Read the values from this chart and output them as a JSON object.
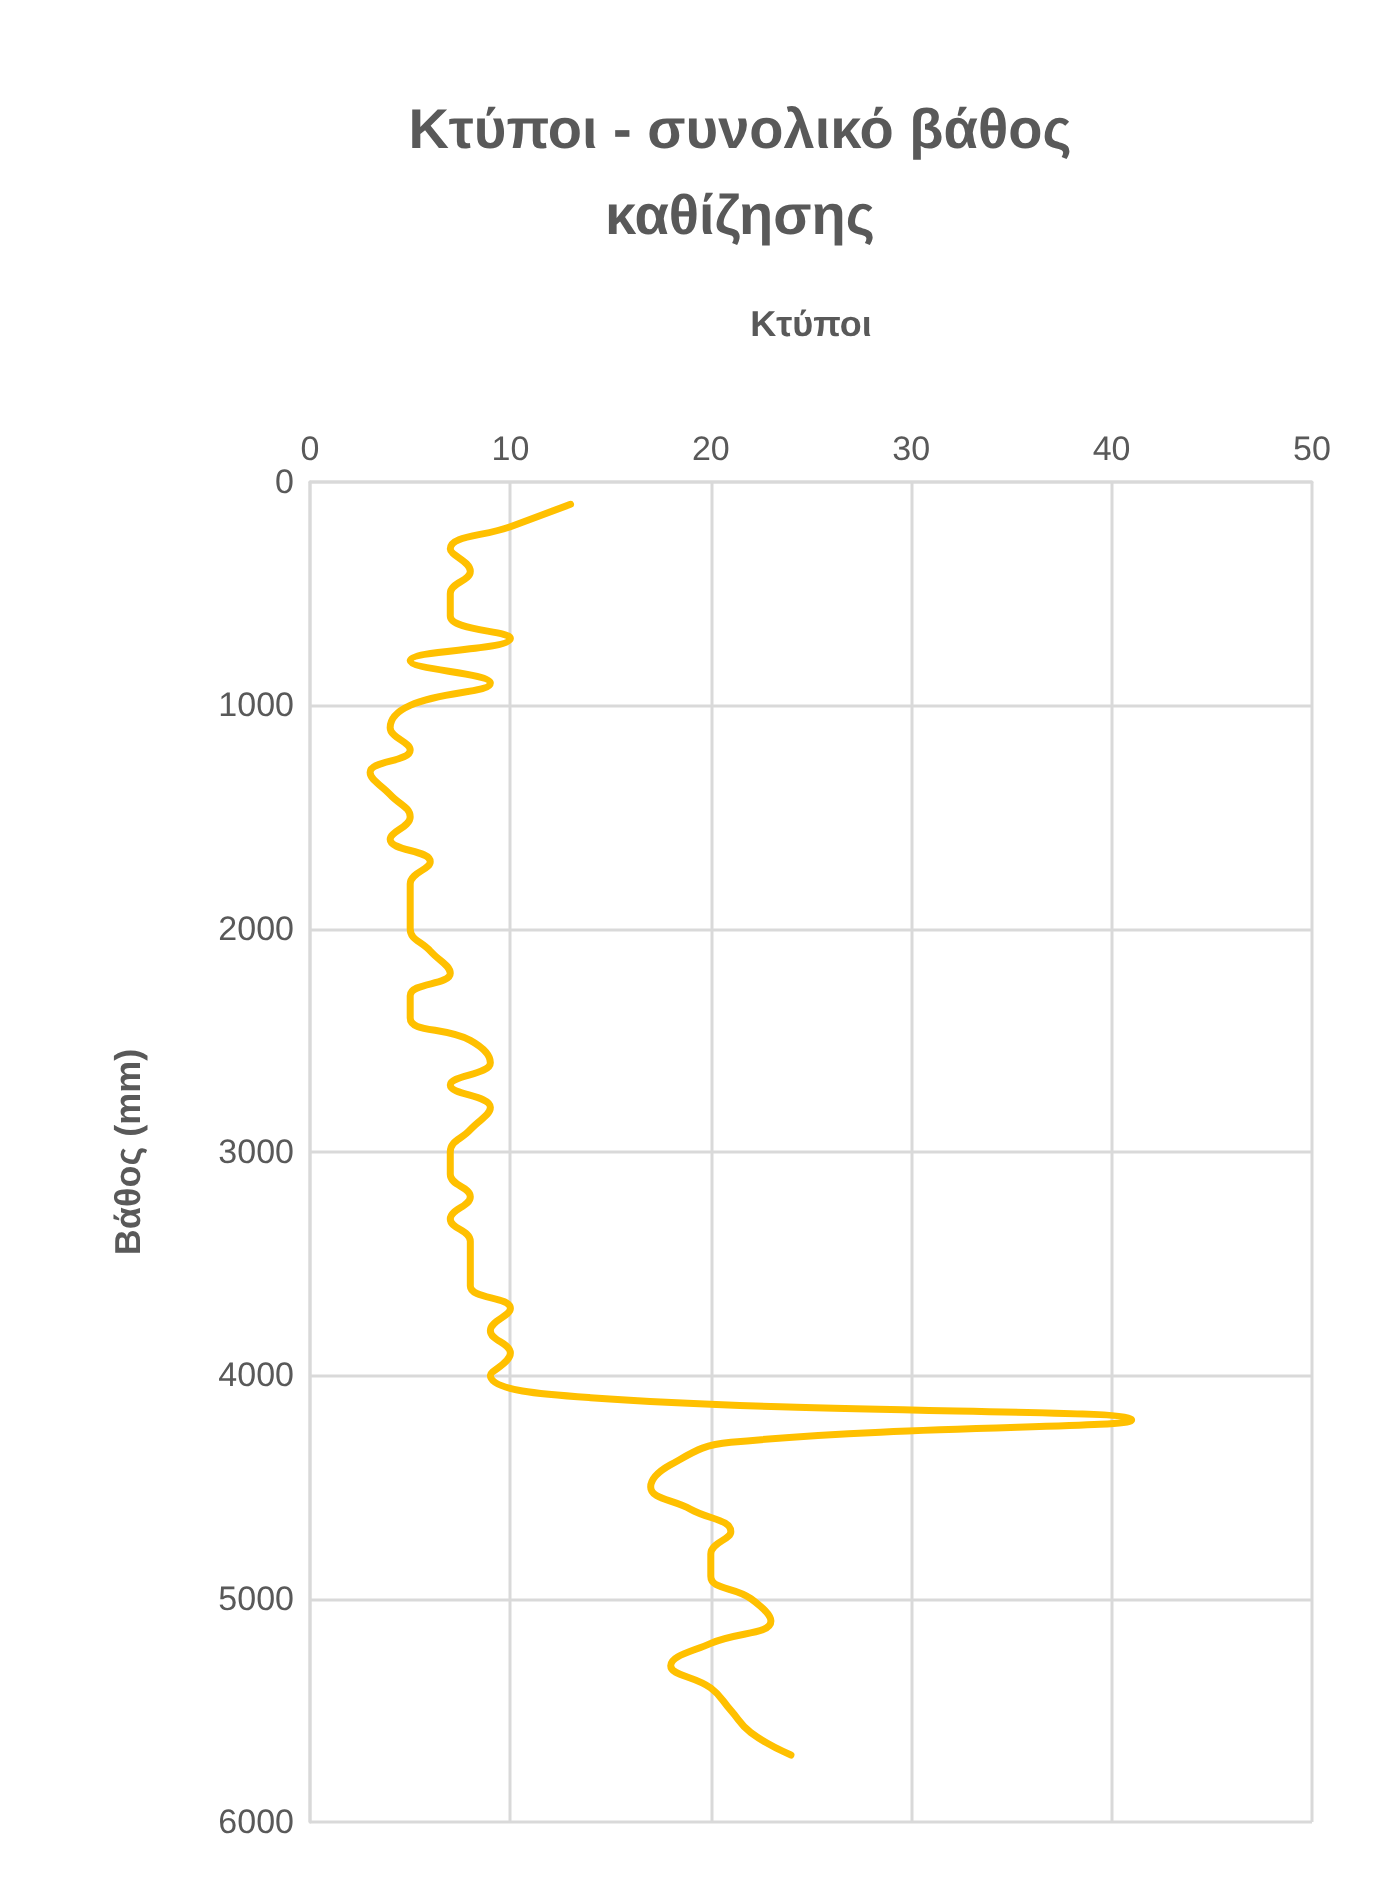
{
  "chart_data": {
    "type": "line",
    "title": "Κτύποι - συνολικό βάθος καθίζησης",
    "xlabel": "Κτύποι",
    "ylabel": "Βάθος (mm)",
    "xlim": [
      0,
      50
    ],
    "xticks": [
      0,
      10,
      20,
      30,
      40,
      50
    ],
    "ylim": [
      6000,
      0
    ],
    "yticks": [
      0,
      1000,
      2000,
      3000,
      4000,
      5000,
      6000
    ],
    "grid": true,
    "series": [
      {
        "color": "#ffc000",
        "x": [
          13,
          10,
          7,
          8,
          7,
          7,
          10,
          5,
          9,
          5,
          4,
          5,
          3,
          4,
          5,
          4,
          6,
          5,
          5,
          5,
          6,
          7,
          5,
          5,
          8,
          9,
          7,
          9,
          8,
          7,
          7,
          8,
          7,
          8,
          8,
          8,
          10,
          9,
          10,
          9,
          14,
          41,
          21,
          18,
          17,
          19,
          21,
          20,
          20,
          22,
          23,
          20,
          18,
          20,
          21,
          22,
          24
        ],
        "values": [
          100,
          200,
          300,
          400,
          500,
          600,
          700,
          800,
          900,
          1000,
          1100,
          1200,
          1300,
          1400,
          1500,
          1600,
          1700,
          1800,
          1900,
          2000,
          2100,
          2200,
          2300,
          2400,
          2500,
          2600,
          2700,
          2800,
          2900,
          3000,
          3100,
          3200,
          3300,
          3400,
          3500,
          3600,
          3700,
          3800,
          3900,
          4000,
          4100,
          4200,
          4300,
          4400,
          4500,
          4600,
          4700,
          4800,
          4900,
          5000,
          5100,
          5200,
          5300,
          5400,
          5500,
          5600,
          5700
        ]
      }
    ]
  }
}
